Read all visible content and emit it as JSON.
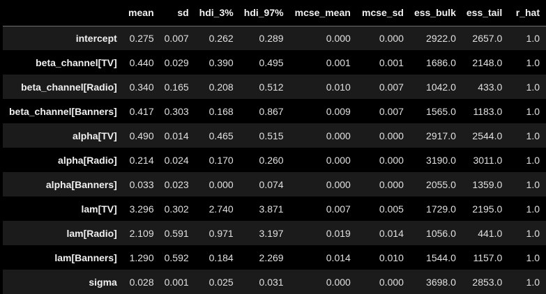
{
  "columns": [
    "",
    "mean",
    "sd",
    "hdi_3%",
    "hdi_97%",
    "mcse_mean",
    "mcse_sd",
    "ess_bulk",
    "ess_tail",
    "r_hat"
  ],
  "rows": [
    {
      "index": "intercept",
      "values": [
        "0.275",
        "0.007",
        "0.262",
        "0.289",
        "0.000",
        "0.000",
        "2922.0",
        "2657.0",
        "1.0"
      ]
    },
    {
      "index": "beta_channel[TV]",
      "values": [
        "0.440",
        "0.029",
        "0.390",
        "0.495",
        "0.001",
        "0.001",
        "1686.0",
        "2148.0",
        "1.0"
      ]
    },
    {
      "index": "beta_channel[Radio]",
      "values": [
        "0.340",
        "0.165",
        "0.208",
        "0.512",
        "0.010",
        "0.007",
        "1042.0",
        "433.0",
        "1.0"
      ]
    },
    {
      "index": "beta_channel[Banners]",
      "values": [
        "0.417",
        "0.303",
        "0.168",
        "0.867",
        "0.009",
        "0.007",
        "1565.0",
        "1183.0",
        "1.0"
      ]
    },
    {
      "index": "alpha[TV]",
      "values": [
        "0.490",
        "0.014",
        "0.465",
        "0.515",
        "0.000",
        "0.000",
        "2917.0",
        "2544.0",
        "1.0"
      ]
    },
    {
      "index": "alpha[Radio]",
      "values": [
        "0.214",
        "0.024",
        "0.170",
        "0.260",
        "0.000",
        "0.000",
        "3190.0",
        "3011.0",
        "1.0"
      ]
    },
    {
      "index": "alpha[Banners]",
      "values": [
        "0.033",
        "0.023",
        "0.000",
        "0.074",
        "0.000",
        "0.000",
        "2055.0",
        "1359.0",
        "1.0"
      ]
    },
    {
      "index": "lam[TV]",
      "values": [
        "3.296",
        "0.302",
        "2.740",
        "3.871",
        "0.007",
        "0.005",
        "1729.0",
        "2195.0",
        "1.0"
      ]
    },
    {
      "index": "lam[Radio]",
      "values": [
        "2.109",
        "0.591",
        "0.971",
        "3.197",
        "0.019",
        "0.014",
        "1056.0",
        "441.0",
        "1.0"
      ]
    },
    {
      "index": "lam[Banners]",
      "values": [
        "1.290",
        "0.592",
        "0.184",
        "2.269",
        "0.014",
        "0.010",
        "1544.0",
        "1157.0",
        "1.0"
      ]
    },
    {
      "index": "sigma",
      "values": [
        "0.028",
        "0.001",
        "0.025",
        "0.031",
        "0.000",
        "0.000",
        "3698.0",
        "2853.0",
        "1.0"
      ]
    }
  ]
}
